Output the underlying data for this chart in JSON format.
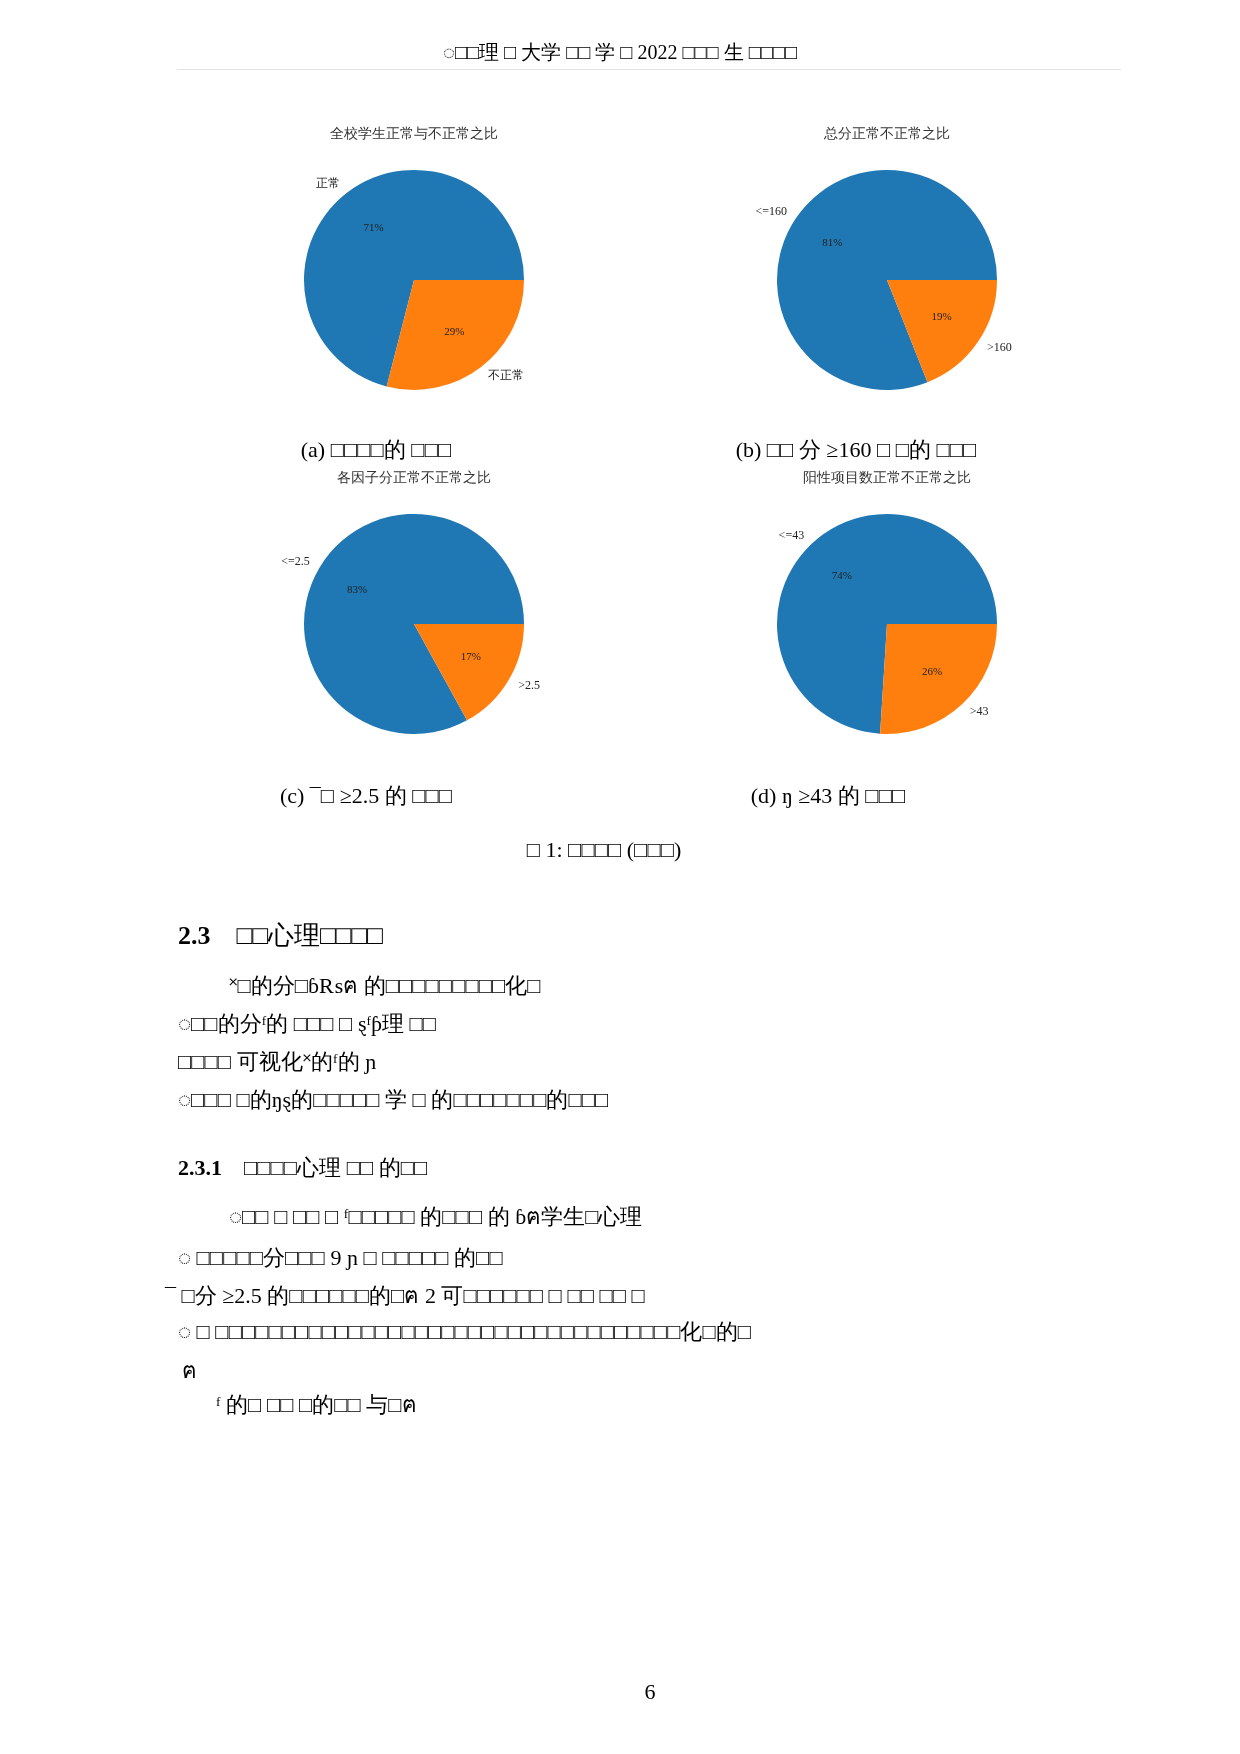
{
  "chart_data": [
    {
      "type": "other",
      "annotations": [
        "◌□□理 □ 大学 □□ 学 □ 2022 □□□ 生 □□□□"
      ]
    },
    {
      "type": "pie",
      "title": "全校学生正常与不正常之比",
      "categories": [
        "正常",
        "不正常"
      ],
      "values": [
        71,
        29
      ],
      "colors": [
        "#1f77b4",
        "#ff7f0e"
      ],
      "value_labels": [
        "71%",
        "29%"
      ],
      "annotations": [
        "(a) □□□□的 □□□"
      ]
    },
    {
      "type": "pie",
      "title": "总分正常不正常之比",
      "categories": [
        "<=160",
        ">160"
      ],
      "values": [
        81,
        19
      ],
      "colors": [
        "#1f77b4",
        "#ff7f0e"
      ],
      "value_labels": [
        "81%",
        "19%"
      ],
      "annotations": [
        "(b) □□ 分 ≥160 □ □的 □□□"
      ]
    },
    {
      "type": "pie",
      "title": "各因子分正常不正常之比",
      "categories": [
        "<=2.5",
        ">2.5"
      ],
      "values": [
        83,
        17
      ],
      "colors": [
        "#1f77b4",
        "#ff7f0e"
      ],
      "value_labels": [
        "83%",
        "17%"
      ],
      "annotations": [
        "(c) ¯□ ≥2.5 的 □□□"
      ]
    },
    {
      "type": "pie",
      "title": "阳性项目数正常不正常之比",
      "categories": [
        "<=43",
        ">43"
      ],
      "values": [
        74,
        26
      ],
      "colors": [
        "#1f77b4",
        "#ff7f0e"
      ],
      "value_labels": [
        "74%",
        "26%"
      ],
      "annotations": [
        "(d) ŋ ≥43 的 □□□"
      ]
    },
    {
      "type": "other",
      "annotations": [
        "□ 1: □□□□ (□□□)",
        "2.3    □□心理□□□□",
        "˟□的分□ɓ₨ฅ 的□□□□□□□□□化□",
        "◌□□的分ᶠ的 □□□ □ ȿᶠƥ理 □□",
        "□□□□ 可视化˟的ᶠ的 ɲ",
        "◌□□□ □的ŋȿ的□□□□□ 学 □ 的□□□□□□□的□□□",
        "2.3.1    □□□□心理 □□ 的□□",
        "◌□□ □ □□ □ ᶠ□□□□□ 的□□□ 的 ɓฅ学生□心理",
        "◌ □□□□□分□□□ 9 ɲ □ □□□□□ 的□□",
        "¯ □分 ≥2.5 的□□□□□□的□ฅ 2 可□□□□□□ □ □□ □□ □",
        "◌ □ □□□□□□□□□□□□□□□□□□□□□□□□□□□□□□□□□□□化□的□",
        "ฅ",
        "ᶠ 的□ □□ □的□□ 与□ฅ",
        "6"
      ]
    }
  ]
}
